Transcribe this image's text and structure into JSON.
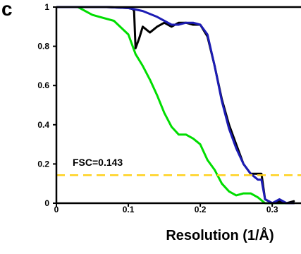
{
  "panel_label": "c",
  "chart_data": {
    "type": "line",
    "xlabel": "Resolution (1/Å)",
    "ylabel": "",
    "xlim": [
      0,
      0.34
    ],
    "ylim": [
      0,
      1
    ],
    "x_ticks": [
      0,
      0.1,
      0.2,
      0.3
    ],
    "x_tick_labels": [
      "0",
      "0.1",
      "0.2",
      "0.3"
    ],
    "y_ticks": [
      0,
      0.2,
      0.4,
      0.6,
      0.8,
      1
    ],
    "y_tick_labels": [
      "0",
      "0.2",
      "0.4",
      "0.6",
      "0.8",
      "1"
    ],
    "grid": false,
    "legend": "none",
    "threshold": {
      "value": 0.143,
      "label": "FSC=0.143",
      "color": "#ffd21f",
      "style": "dashed"
    },
    "series": [
      {
        "color": "#00dd00",
        "x": [
          0,
          0.03,
          0.04,
          0.05,
          0.06,
          0.08,
          0.1,
          0.11,
          0.12,
          0.13,
          0.14,
          0.15,
          0.16,
          0.17,
          0.18,
          0.19,
          0.2,
          0.21,
          0.22,
          0.23,
          0.24,
          0.25,
          0.26,
          0.27,
          0.28,
          0.29,
          0.3,
          0.31,
          0.32,
          0.33
        ],
        "y": [
          1,
          1,
          0.98,
          0.96,
          0.95,
          0.93,
          0.86,
          0.76,
          0.7,
          0.63,
          0.55,
          0.46,
          0.39,
          0.35,
          0.35,
          0.33,
          0.3,
          0.22,
          0.17,
          0.1,
          0.06,
          0.04,
          0.05,
          0.05,
          0.03,
          0.0,
          0.0,
          0.0,
          0.0,
          0.0
        ]
      },
      {
        "color": "#000000",
        "x": [
          0,
          0.03,
          0.07,
          0.1,
          0.106,
          0.108,
          0.11,
          0.115,
          0.12,
          0.13,
          0.14,
          0.15,
          0.16,
          0.17,
          0.18,
          0.19,
          0.2,
          0.21,
          0.22,
          0.23,
          0.24,
          0.25,
          0.26,
          0.27,
          0.28,
          0.285,
          0.29,
          0.3,
          0.31,
          0.32,
          0.33
        ],
        "y": [
          1,
          1,
          1,
          0.995,
          0.99,
          0.98,
          0.79,
          0.84,
          0.9,
          0.87,
          0.9,
          0.92,
          0.9,
          0.92,
          0.92,
          0.91,
          0.91,
          0.85,
          0.7,
          0.53,
          0.4,
          0.3,
          0.2,
          0.15,
          0.15,
          0.15,
          0.02,
          0.0,
          0.01,
          0.0,
          0.01
        ]
      },
      {
        "color": "#1c1cb4",
        "x": [
          0,
          0.03,
          0.07,
          0.1,
          0.12,
          0.14,
          0.16,
          0.17,
          0.18,
          0.19,
          0.2,
          0.21,
          0.22,
          0.23,
          0.24,
          0.25,
          0.26,
          0.27,
          0.28,
          0.285,
          0.29,
          0.3,
          0.31,
          0.32,
          0.33
        ],
        "y": [
          1,
          1,
          1,
          0.995,
          0.98,
          0.95,
          0.91,
          0.91,
          0.92,
          0.92,
          0.91,
          0.86,
          0.7,
          0.52,
          0.38,
          0.28,
          0.2,
          0.15,
          0.12,
          0.12,
          0.02,
          0.0,
          0.02,
          0.0,
          0.0
        ]
      }
    ]
  }
}
